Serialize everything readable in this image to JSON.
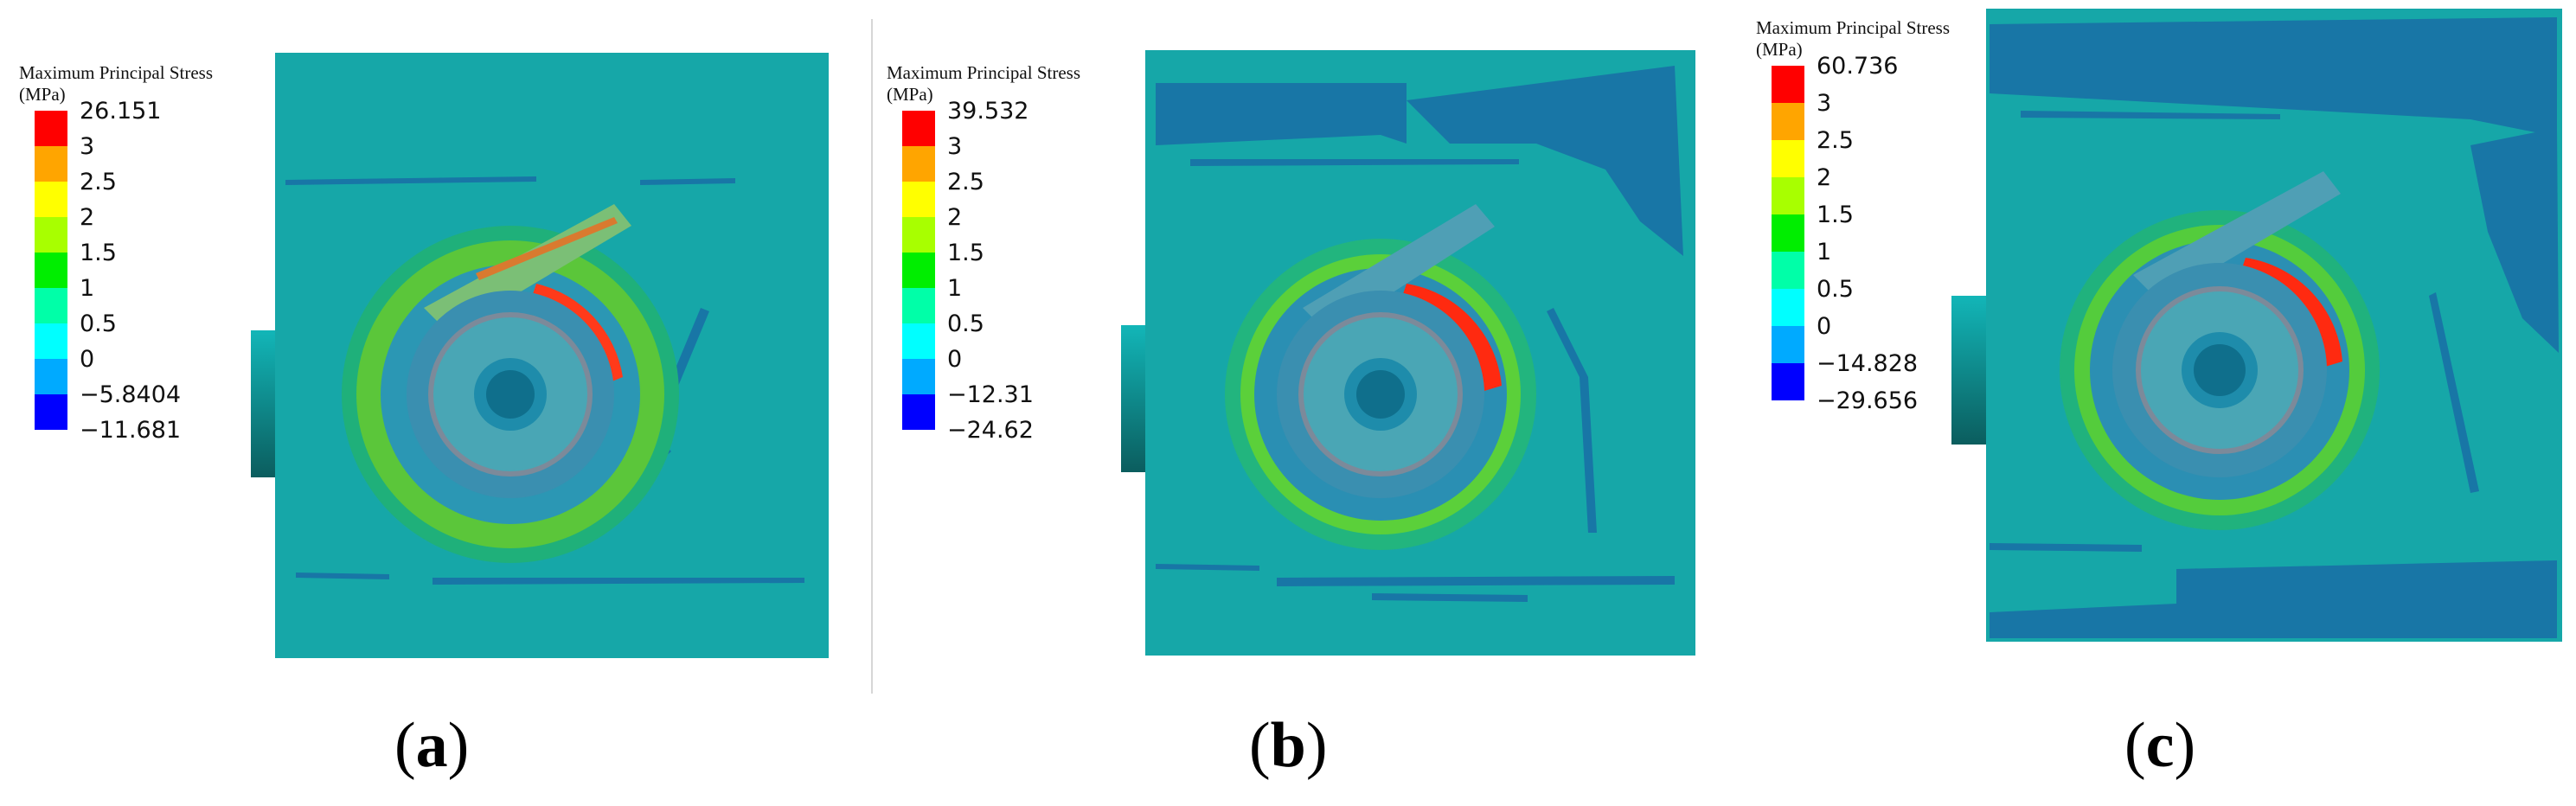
{
  "colors": {
    "background_field": "#16a7a8",
    "dark_patch": "#1876a6",
    "legend": [
      "#ff0000",
      "#ffa500",
      "#ffff00",
      "#a8ff00",
      "#00ee00",
      "#00ffa8",
      "#00ffff",
      "#00aaff",
      "#0000ff"
    ]
  },
  "panels": [
    {
      "id": "a",
      "legend_title_line1": "Maximum Principal Stress",
      "legend_title_line2": "(MPa)",
      "ticks": [
        "26.151",
        "3",
        "2.5",
        "2",
        "1.5",
        "1",
        "0.5",
        "0",
        "−5.8404",
        "−11.681"
      ],
      "caption_open": "(",
      "caption_letter": "a",
      "caption_close": ")"
    },
    {
      "id": "b",
      "legend_title_line1": "Maximum Principal Stress",
      "legend_title_line2": "(MPa)",
      "ticks": [
        "39.532",
        "3",
        "2.5",
        "2",
        "1.5",
        "1",
        "0.5",
        "0",
        "−12.31",
        "−24.62"
      ],
      "caption_open": "(",
      "caption_letter": "b",
      "caption_close": ")"
    },
    {
      "id": "c",
      "legend_title_line1": "Maximum Principal Stress",
      "legend_title_line2": "(MPa)",
      "ticks": [
        "60.736",
        "3",
        "2.5",
        "2",
        "1.5",
        "1",
        "0.5",
        "0",
        "−14.828",
        "−29.656"
      ],
      "caption_open": "(",
      "caption_letter": "c",
      "caption_close": ")"
    }
  ]
}
